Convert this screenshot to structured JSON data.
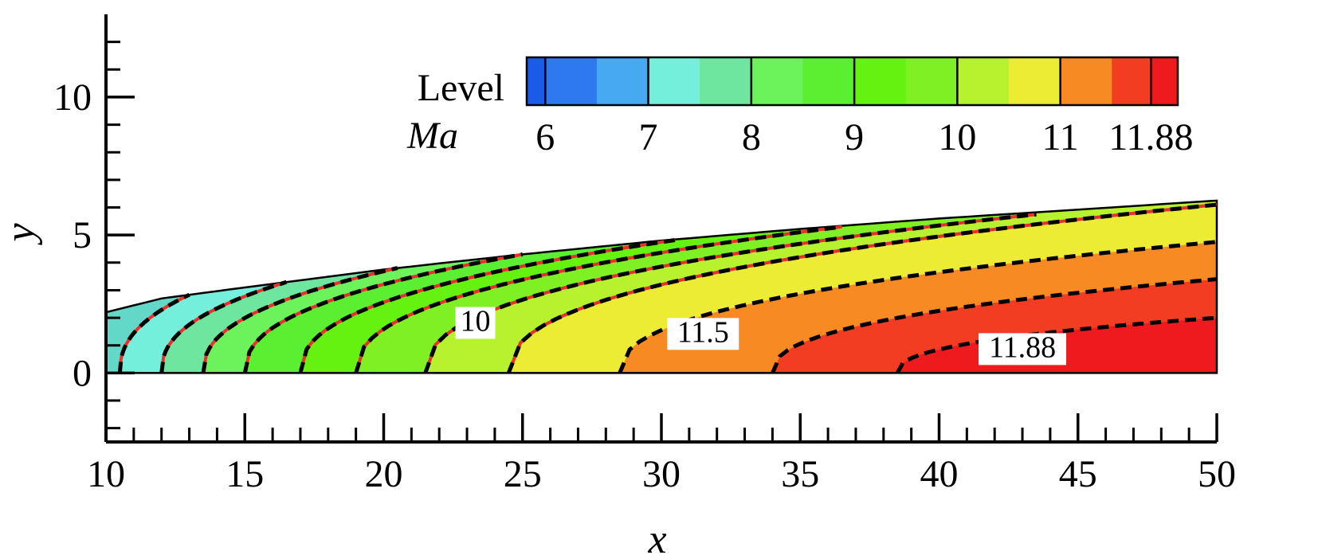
{
  "chart_data": {
    "type": "contour",
    "title": "",
    "xlabel": "x",
    "ylabel": "y",
    "xlim": [
      10,
      50
    ],
    "ylim": [
      -2.5,
      13
    ],
    "x_ticks": [
      "10",
      "15",
      "20",
      "25",
      "30",
      "35",
      "40",
      "45",
      "50"
    ],
    "y_ticks": [
      "0",
      "5",
      "10"
    ],
    "x_tick_values": [
      10,
      15,
      20,
      25,
      30,
      35,
      40,
      45,
      50
    ],
    "y_tick_values": [
      0,
      5,
      10
    ],
    "grid": false,
    "legend": {
      "title_line1": "Level",
      "title_line2": "Ma",
      "placement": "top-right",
      "labels": [
        "6",
        "7",
        "8",
        "9",
        "10",
        "11",
        "11.88"
      ],
      "label_values": [
        6,
        7,
        8,
        9,
        10,
        11,
        11.88
      ],
      "range": [
        5.82,
        12.14
      ],
      "color_bands": [
        {
          "from": 5.82,
          "to": 6.0,
          "color": "#1a5ce8"
        },
        {
          "from": 6.0,
          "to": 6.5,
          "color": "#2e78f0"
        },
        {
          "from": 6.5,
          "to": 7.0,
          "color": "#47a9f2"
        },
        {
          "from": 7.0,
          "to": 7.5,
          "color": "#73efdc"
        },
        {
          "from": 7.5,
          "to": 8.0,
          "color": "#6ee6a0"
        },
        {
          "from": 8.0,
          "to": 8.5,
          "color": "#6cf25a"
        },
        {
          "from": 8.5,
          "to": 9.0,
          "color": "#5bef32"
        },
        {
          "from": 9.0,
          "to": 9.5,
          "color": "#66f210"
        },
        {
          "from": 9.5,
          "to": 10.0,
          "color": "#7ef024"
        },
        {
          "from": 10.0,
          "to": 10.5,
          "color": "#b6f22e"
        },
        {
          "from": 10.5,
          "to": 11.0,
          "color": "#edec34"
        },
        {
          "from": 11.0,
          "to": 11.5,
          "color": "#f78a22"
        },
        {
          "from": 11.5,
          "to": 11.88,
          "color": "#f23d22"
        },
        {
          "from": 11.88,
          "to": 12.14,
          "color": "#ee1a1e"
        }
      ],
      "divider_values": [
        6.0,
        7.0,
        8.0,
        9.0,
        10.0,
        11.0,
        11.88
      ]
    },
    "domain_upper_boundary": [
      [
        10,
        2.2
      ],
      [
        12,
        2.7
      ],
      [
        15,
        3.1
      ],
      [
        20,
        3.75
      ],
      [
        25,
        4.3
      ],
      [
        30,
        4.8
      ],
      [
        35,
        5.22
      ],
      [
        40,
        5.6
      ],
      [
        45,
        5.92
      ],
      [
        50,
        6.25
      ]
    ],
    "contour_lines": [
      {
        "start_x": 10.5,
        "end_x": 13.0,
        "end_y": 2.95,
        "style": "red-black-dash"
      },
      {
        "start_x": 12.0,
        "end_x": 16.5,
        "end_y": 3.45,
        "style": "red-black-dash"
      },
      {
        "start_x": 13.5,
        "end_x": 20.5,
        "end_y": 3.85,
        "style": "red-black-dash"
      },
      {
        "start_x": 15.0,
        "end_x": 25.0,
        "end_y": 4.3,
        "style": "red-black-dash"
      },
      {
        "start_x": 17.0,
        "end_x": 30.5,
        "end_y": 4.82,
        "style": "red-black-dash"
      },
      {
        "start_x": 19.0,
        "end_x": 36.5,
        "end_y": 5.3,
        "style": "red-black-dash"
      },
      {
        "start_x": 21.5,
        "end_x": 43.5,
        "end_y": 5.75,
        "style": "red-black-dash"
      },
      {
        "start_x": 24.5,
        "end_x": 50.0,
        "end_y": 6.1,
        "style": "red-black-dash"
      },
      {
        "start_x": 28.5,
        "end_x": 50.0,
        "end_y": 4.75,
        "style": "black-dash"
      },
      {
        "start_x": 34.0,
        "end_x": 50.0,
        "end_y": 3.4,
        "style": "black-dash"
      },
      {
        "start_x": 38.5,
        "end_x": 50.0,
        "end_y": 2.0,
        "style": "black-dash"
      }
    ],
    "band_colors": [
      "#64d8c8",
      "#73efdc",
      "#6ee6a0",
      "#6cf25a",
      "#5bef32",
      "#66f210",
      "#7ef024",
      "#b6f22e",
      "#edec34",
      "#f78a22",
      "#f23d22",
      "#ee1a1e"
    ],
    "contour_labels": [
      {
        "text": "10",
        "x": 23.3,
        "y": 1.7
      },
      {
        "text": "11.5",
        "x": 31.5,
        "y": 1.3
      },
      {
        "text": "11.88",
        "x": 43.0,
        "y": 0.75
      }
    ]
  }
}
